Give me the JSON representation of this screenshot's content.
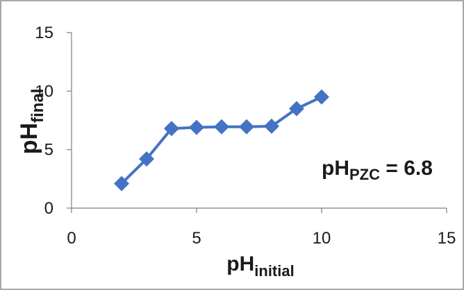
{
  "chart_data": {
    "type": "scatter",
    "x": [
      2,
      3,
      4,
      5,
      6,
      7,
      8,
      9,
      10
    ],
    "series": [
      {
        "values": [
          2.1,
          4.2,
          6.8,
          6.9,
          6.95,
          6.95,
          7.0,
          8.5,
          9.5
        ]
      }
    ],
    "xlim": [
      0,
      15
    ],
    "ylim": [
      0,
      15
    ],
    "x_ticks": [
      "0",
      "5",
      "10",
      "15"
    ],
    "y_ticks": [
      "0",
      "5",
      "10",
      "15"
    ],
    "xlabel_main": "pH",
    "xlabel_sub": "initial",
    "ylabel_main": "pH",
    "ylabel_sub": "final",
    "annotation_main": "pH",
    "annotation_sub": "PZC",
    "annotation_value": " = 6.8",
    "series_color": "#4472c4",
    "grid": false,
    "markers": "diamond",
    "lines": "straight"
  }
}
